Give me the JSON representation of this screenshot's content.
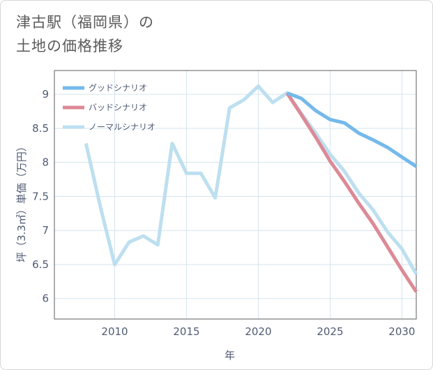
{
  "title_line1": "津古駅（福岡県）の",
  "title_line2": "土地の価格推移",
  "colors": {
    "good": "#74b9eb",
    "bad": "#dc8a96",
    "normal": "#bddff0",
    "grid": "#d3e4ee",
    "frame": "#5e5e5e"
  },
  "chart_data": {
    "type": "line",
    "title": "津古駅（福岡県）の土地の価格推移",
    "xlabel": "年",
    "ylabel": "坪（3.3㎡）単価（万円）",
    "xlim": [
      2005.8,
      2031
    ],
    "ylim": [
      5.7,
      9.35
    ],
    "xticks": [
      2010,
      2015,
      2020,
      2025,
      2030
    ],
    "yticks": [
      6,
      6.5,
      7,
      7.5,
      8,
      8.5,
      9
    ],
    "xtick_labels": [
      "2010",
      "2015",
      "2020",
      "2025",
      "2030"
    ],
    "ytick_labels": [
      "6",
      "6.5",
      "7",
      "7.5",
      "8",
      "8.5",
      "9"
    ],
    "legend_position": "top-left",
    "series": [
      {
        "name": "グッドシナリオ",
        "color": "#74b9eb",
        "x": [
          2022,
          2023,
          2024,
          2025,
          2026,
          2027,
          2028,
          2029,
          2030,
          2031
        ],
        "values": [
          9.02,
          8.94,
          8.76,
          8.63,
          8.58,
          8.43,
          8.33,
          8.22,
          8.08,
          7.94
        ]
      },
      {
        "name": "バッドシナリオ",
        "color": "#dc8a96",
        "x": [
          2022,
          2023,
          2024,
          2025,
          2026,
          2027,
          2028,
          2029,
          2030,
          2031
        ],
        "values": [
          9.02,
          8.7,
          8.37,
          8.02,
          7.72,
          7.4,
          7.1,
          6.76,
          6.42,
          6.1
        ]
      },
      {
        "name": "ノーマルシナリオ",
        "color": "#bddff0",
        "x": [
          2008,
          2009,
          2010,
          2011,
          2012,
          2013,
          2014,
          2015,
          2016,
          2017,
          2018,
          2019,
          2020,
          2021,
          2022,
          2023,
          2024,
          2025,
          2026,
          2027,
          2028,
          2029,
          2030,
          2031
        ],
        "values": [
          8.28,
          7.35,
          6.5,
          6.83,
          6.92,
          6.79,
          8.28,
          7.84,
          7.84,
          7.48,
          8.8,
          8.92,
          9.12,
          8.88,
          9.02,
          8.72,
          8.43,
          8.12,
          7.87,
          7.55,
          7.3,
          6.98,
          6.73,
          6.36
        ]
      }
    ]
  }
}
